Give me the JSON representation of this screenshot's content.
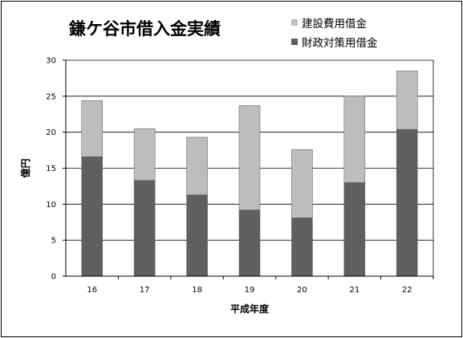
{
  "chart_data": {
    "type": "bar",
    "stacked": true,
    "title": "鎌ケ谷市借入金実績",
    "xlabel": "平成年度",
    "ylabel": "億円",
    "categories": [
      "16",
      "17",
      "18",
      "19",
      "20",
      "21",
      "22"
    ],
    "ylim": [
      0,
      30
    ],
    "yticks": [
      0,
      5,
      10,
      15,
      20,
      25,
      30
    ],
    "grid": true,
    "legend_position": "top-right",
    "series": [
      {
        "name": "財政対策用借金",
        "color": "#5f5f5f",
        "values": [
          16.6,
          13.3,
          11.3,
          9.2,
          8.1,
          13.0,
          20.4
        ]
      },
      {
        "name": "建設費用借金",
        "color": "#bdbdbd",
        "values": [
          7.8,
          7.2,
          8.0,
          14.5,
          9.5,
          12.0,
          8.1
        ]
      }
    ],
    "legend_order": [
      1,
      0
    ]
  }
}
